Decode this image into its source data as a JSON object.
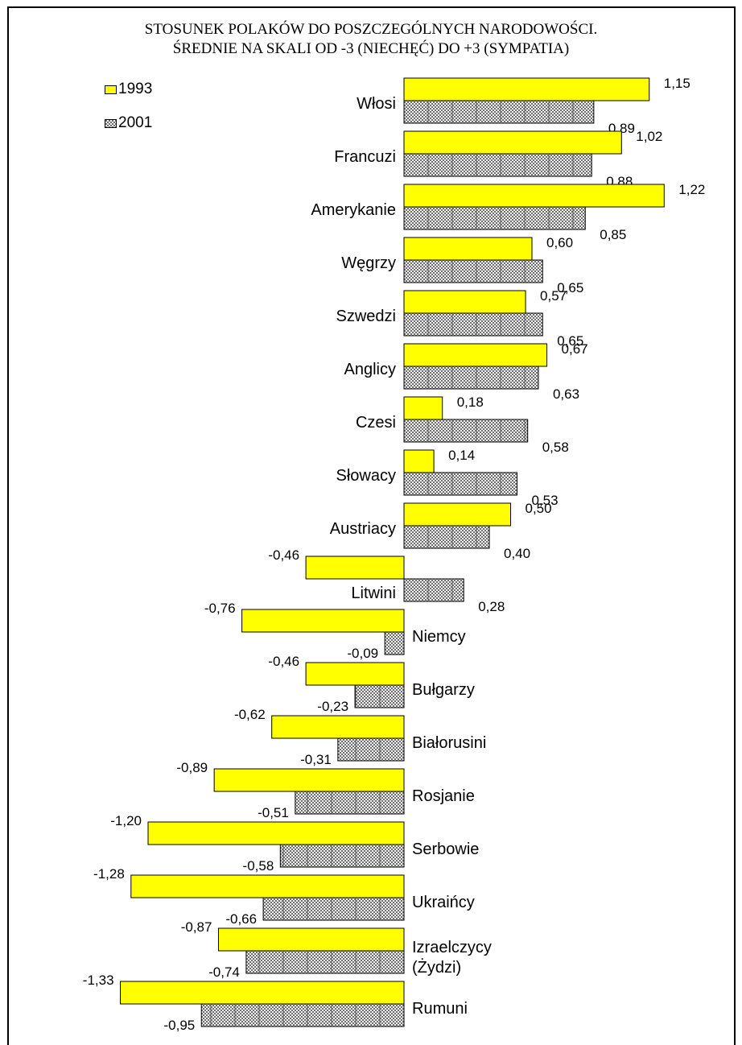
{
  "chart_data": {
    "type": "bar",
    "orientation": "horizontal",
    "title": "STOSUNEK POLAKÓW DO POSZCZEGÓLNYCH NARODOWOŚCI.",
    "subtitle": "ŚREDNIE NA SKALI OD -3 (NIECHĘĆ) DO +3 (SYMPATIA)",
    "legend_position": "top-left",
    "grid": false,
    "categories": [
      "Włosi",
      "Francuzi",
      "Amerykanie",
      "Węgrzy",
      "Szwedzi",
      "Anglicy",
      "Czesi",
      "Słowacy",
      "Austriacy",
      "Litwini",
      "Niemcy",
      "Bułgarzy",
      "Białorusini",
      "Rosjanie",
      "Serbowie",
      "Ukraińcy",
      "Izraelczycy (Żydzi)",
      "Rumuni"
    ],
    "series": [
      {
        "name": "1993",
        "color": "#ffff00",
        "values": [
          1.15,
          1.02,
          1.22,
          0.6,
          0.57,
          0.67,
          0.18,
          0.14,
          0.5,
          -0.46,
          -0.76,
          -0.46,
          -0.62,
          -0.89,
          -1.2,
          -1.28,
          -0.87,
          -1.33
        ],
        "labels": [
          "1,15",
          "1,02",
          "1,22",
          "0,60",
          "0,57",
          "0,67",
          "0,18",
          "0,14",
          "0,50",
          "-0,46",
          "-0,76",
          "-0,46",
          "-0,62",
          "-0,89",
          "-1,20",
          "-1,28",
          "-0,87",
          "-1,33"
        ]
      },
      {
        "name": "2001",
        "pattern": "hatched",
        "values": [
          0.89,
          0.88,
          0.85,
          0.65,
          0.65,
          0.63,
          0.58,
          0.53,
          0.4,
          0.28,
          -0.09,
          -0.23,
          -0.31,
          -0.51,
          -0.58,
          -0.66,
          -0.74,
          -0.95
        ],
        "labels": [
          "0,89",
          "0,88",
          "0,85",
          "0,65",
          "0,65",
          "0,63",
          "0,58",
          "0,53",
          "0,40",
          "0,28",
          "-0,09",
          "-0,23",
          "-0,31",
          "-0,51",
          "-0,58",
          "-0,66",
          "-0,74",
          "-0,95"
        ]
      }
    ]
  }
}
